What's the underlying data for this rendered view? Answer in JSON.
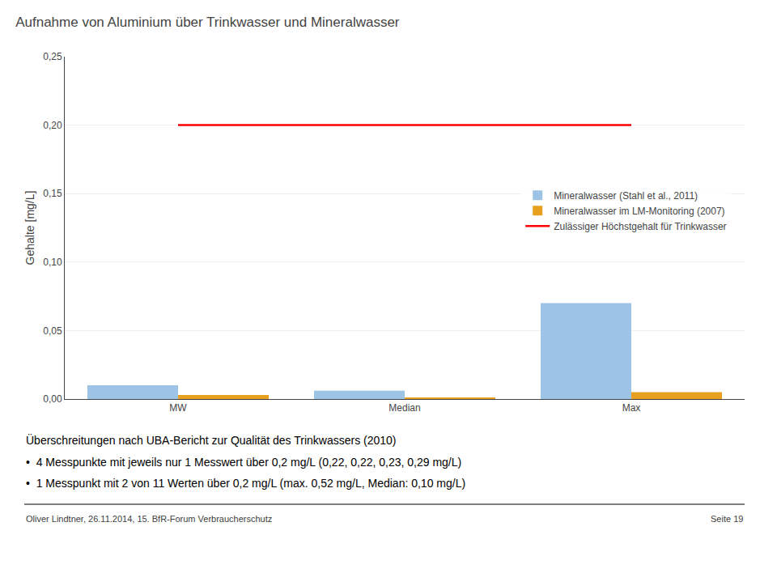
{
  "chart_data": {
    "type": "bar",
    "title": "Aufnahme von Aluminium über Trinkwasser und Mineralwasser",
    "y_label": "Gehalte [mg/L]",
    "categories": [
      "MW",
      "Median",
      "Max"
    ],
    "series": [
      {
        "name": "Mineralwasser (Stahl et al., 2011)",
        "color": "#9DC3E6",
        "values": [
          0.01,
          0.006,
          0.07
        ]
      },
      {
        "name": "Mineralwasser im LM-Monitoring (2007)",
        "color": "#E8A020",
        "values": [
          0.003,
          0.001,
          0.005
        ]
      },
      {
        "name": "Zulässiger Höchstgehalt für Trinkwasser",
        "color": "#FF0000",
        "type": "line",
        "values": [
          0.2,
          0.2,
          0.2
        ]
      }
    ],
    "ylim": [
      0,
      0.25
    ],
    "yticks": [
      {
        "value": 0,
        "label": "0,00"
      },
      {
        "value": 0.05,
        "label": "0,05"
      },
      {
        "value": 0.1,
        "label": "0,10"
      },
      {
        "value": 0.15,
        "label": "0,15"
      },
      {
        "value": 0.2,
        "label": "0,20"
      },
      {
        "value": 0.25,
        "label": "0,25"
      }
    ],
    "grid": true,
    "legend": "center right",
    "annotations": [
      "Überschreitungen nach UBA-Bericht zur Qualität des Trinkwassers (2010)",
      "•  4 Messpunkte mit jeweils nur 1 Messwert über 0,2 mg/L (0,22, 0,22, 0,23, 0,29 mg/L)",
      "•  1 Messpunkt mit 2 von 11 Werten über 0,2 mg/L (max. 0,52 mg/L, Median: 0,10 mg/L)",
      "Oliver Lindtner, 26.11.2014, 15. BfR-Forum Verbraucherschutz",
      "Seite 19"
    ]
  }
}
